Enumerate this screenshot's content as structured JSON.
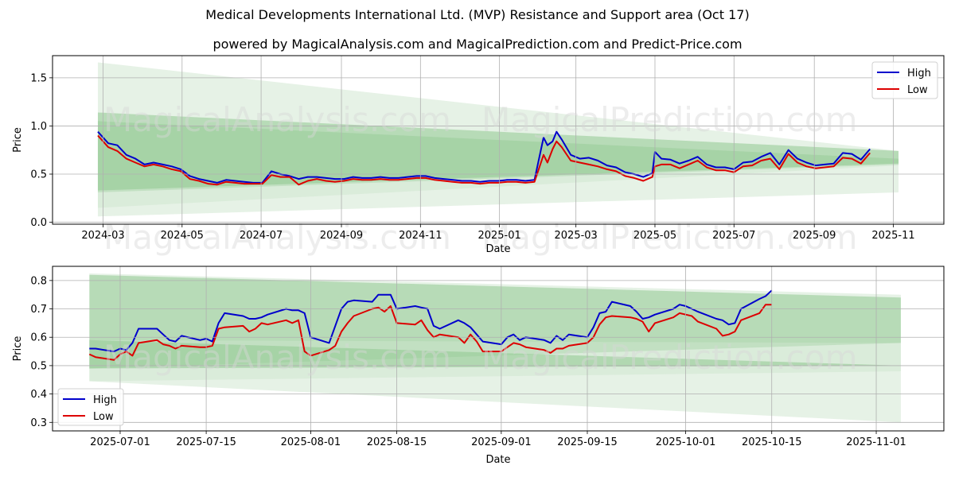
{
  "title": "Medical Developments International Ltd. (MVP) Resistance and Support area (Oct 17)",
  "subtitle": "powered by MagicalAnalysis.com and MagicalPrediction.com and Predict-Price.com",
  "watermarks": [
    "MagicalAnalysis.com",
    "MagicalPrediction.com"
  ],
  "colors": {
    "high": "#0000cc",
    "low": "#dd0000",
    "band_dark": "#8fc98f",
    "band_light": "#cde6cd"
  },
  "chart_data": [
    {
      "type": "line",
      "title": "",
      "xlabel": "Date",
      "ylabel": "Price",
      "ylim": [
        -0.02,
        1.73
      ],
      "xlim": [
        "2024-01-22",
        "2025-12-10"
      ],
      "grid": true,
      "legend": {
        "placement": "top-right",
        "entries": [
          "High",
          "Low"
        ]
      },
      "yticks": [
        0.0,
        0.5,
        1.0,
        1.5
      ],
      "ytick_labels": [
        "0.0",
        "0.5",
        "1.0",
        "1.5"
      ],
      "xticks": [
        "2024-03-01",
        "2024-05-01",
        "2024-07-01",
        "2024-09-01",
        "2024-11-01",
        "2025-01-01",
        "2025-03-01",
        "2025-05-01",
        "2025-07-01",
        "2025-09-01",
        "2025-11-01"
      ],
      "xtick_labels": [
        "2024-03",
        "2024-05",
        "2024-07",
        "2024-09",
        "2024-11",
        "2025-01",
        "2025-03",
        "2025-05",
        "2025-07",
        "2025-09",
        "2025-11"
      ],
      "bands": [
        {
          "name": "resistance-outer",
          "shade": "light",
          "x": [
            "2024-02-26",
            "2025-11-05"
          ],
          "upper": [
            1.66,
            0.74
          ],
          "lower": [
            0.06,
            0.31
          ]
        },
        {
          "name": "resistance-inner",
          "shade": "dark",
          "x": [
            "2024-02-26",
            "2025-11-05"
          ],
          "upper": [
            1.14,
            0.74
          ],
          "lower": [
            0.31,
            0.6
          ]
        },
        {
          "name": "support-outer",
          "shade": "light",
          "x": [
            "2024-02-26",
            "2025-11-05"
          ],
          "upper": [
            1.05,
            0.66
          ],
          "lower": [
            0.15,
            0.59
          ]
        },
        {
          "name": "support-inner",
          "shade": "dark",
          "x": [
            "2024-02-26",
            "2025-11-05"
          ],
          "upper": [
            1.05,
            0.66
          ],
          "lower": [
            0.33,
            0.61
          ]
        }
      ],
      "x": [
        "2024-02-26",
        "2024-03-05",
        "2024-03-12",
        "2024-03-19",
        "2024-03-26",
        "2024-04-02",
        "2024-04-09",
        "2024-04-16",
        "2024-04-23",
        "2024-04-30",
        "2024-05-07",
        "2024-05-14",
        "2024-05-21",
        "2024-05-28",
        "2024-06-04",
        "2024-06-11",
        "2024-06-18",
        "2024-06-25",
        "2024-07-02",
        "2024-07-09",
        "2024-07-16",
        "2024-07-23",
        "2024-07-30",
        "2024-08-06",
        "2024-08-13",
        "2024-08-20",
        "2024-08-27",
        "2024-09-03",
        "2024-09-10",
        "2024-09-17",
        "2024-09-24",
        "2024-10-01",
        "2024-10-08",
        "2024-10-15",
        "2024-10-22",
        "2024-10-29",
        "2024-11-05",
        "2024-11-12",
        "2024-11-19",
        "2024-11-26",
        "2024-12-03",
        "2024-12-10",
        "2024-12-17",
        "2024-12-24",
        "2024-12-31",
        "2025-01-07",
        "2025-01-14",
        "2025-01-21",
        "2025-01-28",
        "2025-02-04",
        "2025-02-07",
        "2025-02-11",
        "2025-02-14",
        "2025-02-18",
        "2025-02-25",
        "2025-03-04",
        "2025-03-11",
        "2025-03-18",
        "2025-03-25",
        "2025-04-01",
        "2025-04-08",
        "2025-04-15",
        "2025-04-22",
        "2025-04-29",
        "2025-05-01",
        "2025-05-06",
        "2025-05-13",
        "2025-05-20",
        "2025-05-27",
        "2025-06-03",
        "2025-06-10",
        "2025-06-17",
        "2025-06-24",
        "2025-07-01",
        "2025-07-08",
        "2025-07-15",
        "2025-07-22",
        "2025-07-29",
        "2025-08-05",
        "2025-08-12",
        "2025-08-19",
        "2025-08-26",
        "2025-09-02",
        "2025-09-09",
        "2025-09-16",
        "2025-09-23",
        "2025-09-30",
        "2025-10-07",
        "2025-10-14"
      ],
      "series": [
        {
          "name": "High",
          "values": [
            0.94,
            0.82,
            0.8,
            0.7,
            0.66,
            0.6,
            0.62,
            0.6,
            0.58,
            0.55,
            0.48,
            0.45,
            0.43,
            0.41,
            0.44,
            0.43,
            0.42,
            0.41,
            0.41,
            0.53,
            0.5,
            0.48,
            0.45,
            0.47,
            0.47,
            0.46,
            0.45,
            0.45,
            0.47,
            0.46,
            0.46,
            0.47,
            0.46,
            0.46,
            0.47,
            0.48,
            0.48,
            0.46,
            0.45,
            0.44,
            0.43,
            0.43,
            0.42,
            0.43,
            0.43,
            0.44,
            0.44,
            0.43,
            0.44,
            0.88,
            0.8,
            0.84,
            0.94,
            0.86,
            0.7,
            0.66,
            0.67,
            0.64,
            0.59,
            0.57,
            0.52,
            0.5,
            0.47,
            0.51,
            0.73,
            0.66,
            0.65,
            0.61,
            0.64,
            0.68,
            0.6,
            0.57,
            0.57,
            0.55,
            0.62,
            0.63,
            0.68,
            0.72,
            0.6,
            0.75,
            0.66,
            0.62,
            0.59,
            0.6,
            0.61,
            0.72,
            0.71,
            0.65,
            0.76
          ]
        },
        {
          "name": "Low",
          "values": [
            0.9,
            0.78,
            0.74,
            0.66,
            0.62,
            0.58,
            0.6,
            0.58,
            0.55,
            0.53,
            0.45,
            0.43,
            0.4,
            0.39,
            0.42,
            0.41,
            0.4,
            0.4,
            0.4,
            0.49,
            0.47,
            0.47,
            0.39,
            0.43,
            0.45,
            0.43,
            0.42,
            0.43,
            0.45,
            0.44,
            0.44,
            0.45,
            0.44,
            0.44,
            0.45,
            0.46,
            0.46,
            0.44,
            0.43,
            0.42,
            0.41,
            0.41,
            0.4,
            0.41,
            0.41,
            0.42,
            0.42,
            0.41,
            0.42,
            0.7,
            0.62,
            0.76,
            0.84,
            0.78,
            0.64,
            0.62,
            0.6,
            0.58,
            0.55,
            0.53,
            0.48,
            0.46,
            0.43,
            0.47,
            0.58,
            0.6,
            0.6,
            0.56,
            0.6,
            0.64,
            0.57,
            0.54,
            0.54,
            0.52,
            0.58,
            0.59,
            0.64,
            0.66,
            0.55,
            0.71,
            0.62,
            0.58,
            0.56,
            0.57,
            0.58,
            0.67,
            0.66,
            0.61,
            0.72
          ]
        }
      ]
    },
    {
      "type": "line",
      "title": "",
      "xlabel": "Date",
      "ylabel": "Price",
      "ylim": [
        0.27,
        0.85
      ],
      "xlim": [
        "2025-06-20",
        "2025-11-12"
      ],
      "grid": true,
      "legend": {
        "placement": "bottom-left",
        "entries": [
          "High",
          "Low"
        ]
      },
      "yticks": [
        0.3,
        0.4,
        0.5,
        0.6,
        0.7,
        0.8
      ],
      "ytick_labels": [
        "0.3",
        "0.4",
        "0.5",
        "0.6",
        "0.7",
        "0.8"
      ],
      "xticks": [
        "2025-07-01",
        "2025-07-15",
        "2025-08-01",
        "2025-08-15",
        "2025-09-01",
        "2025-09-15",
        "2025-10-01",
        "2025-10-15",
        "2025-11-01"
      ],
      "xtick_labels": [
        "2025-07-01",
        "2025-07-15",
        "2025-08-01",
        "2025-08-15",
        "2025-09-01",
        "2025-09-15",
        "2025-10-01",
        "2025-10-15",
        "2025-11-01"
      ],
      "bands": [
        {
          "name": "resistance-outer",
          "shade": "light",
          "x": [
            "2025-06-26",
            "2025-11-05"
          ],
          "upper": [
            0.825,
            0.75
          ],
          "lower": [
            0.445,
            0.3
          ]
        },
        {
          "name": "resistance-inner",
          "shade": "dark",
          "x": [
            "2025-06-26",
            "2025-11-05"
          ],
          "upper": [
            0.82,
            0.74
          ],
          "lower": [
            0.49,
            0.58
          ]
        },
        {
          "name": "support-outer",
          "shade": "light",
          "x": [
            "2025-06-26",
            "2025-11-05"
          ],
          "upper": [
            0.59,
            0.58
          ],
          "lower": [
            0.445,
            0.48
          ]
        },
        {
          "name": "support-inner",
          "shade": "dark",
          "x": [
            "2025-06-26",
            "2025-11-05"
          ],
          "upper": [
            0.59,
            0.5
          ],
          "lower": [
            0.49,
            0.5
          ]
        }
      ],
      "x": [
        "2025-06-26",
        "2025-06-27",
        "2025-06-30",
        "2025-07-01",
        "2025-07-02",
        "2025-07-03",
        "2025-07-04",
        "2025-07-07",
        "2025-07-08",
        "2025-07-09",
        "2025-07-10",
        "2025-07-11",
        "2025-07-14",
        "2025-07-15",
        "2025-07-16",
        "2025-07-17",
        "2025-07-18",
        "2025-07-21",
        "2025-07-22",
        "2025-07-23",
        "2025-07-24",
        "2025-07-25",
        "2025-07-28",
        "2025-07-29",
        "2025-07-30",
        "2025-07-31",
        "2025-08-01",
        "2025-08-04",
        "2025-08-05",
        "2025-08-06",
        "2025-08-07",
        "2025-08-08",
        "2025-08-11",
        "2025-08-12",
        "2025-08-13",
        "2025-08-14",
        "2025-08-15",
        "2025-08-18",
        "2025-08-19",
        "2025-08-20",
        "2025-08-21",
        "2025-08-22",
        "2025-08-25",
        "2025-08-26",
        "2025-08-27",
        "2025-08-28",
        "2025-08-29",
        "2025-09-01",
        "2025-09-02",
        "2025-09-03",
        "2025-09-04",
        "2025-09-05",
        "2025-09-08",
        "2025-09-09",
        "2025-09-10",
        "2025-09-11",
        "2025-09-12",
        "2025-09-15",
        "2025-09-16",
        "2025-09-17",
        "2025-09-18",
        "2025-09-19",
        "2025-09-22",
        "2025-09-23",
        "2025-09-24",
        "2025-09-25",
        "2025-09-26",
        "2025-09-29",
        "2025-09-30",
        "2025-10-01",
        "2025-10-02",
        "2025-10-03",
        "2025-10-06",
        "2025-10-07",
        "2025-10-08",
        "2025-10-09",
        "2025-10-10",
        "2025-10-13",
        "2025-10-14",
        "2025-10-15"
      ],
      "series": [
        {
          "name": "High",
          "values": [
            0.56,
            0.56,
            0.55,
            0.56,
            0.555,
            0.58,
            0.63,
            0.63,
            0.61,
            0.59,
            0.585,
            0.605,
            0.59,
            0.595,
            0.585,
            0.65,
            0.685,
            0.675,
            0.665,
            0.665,
            0.67,
            0.68,
            0.7,
            0.695,
            0.695,
            0.685,
            0.6,
            0.58,
            0.64,
            0.7,
            0.725,
            0.73,
            0.725,
            0.75,
            0.75,
            0.75,
            0.7,
            0.71,
            0.705,
            0.7,
            0.64,
            0.63,
            0.66,
            0.65,
            0.635,
            0.61,
            0.585,
            0.575,
            0.6,
            0.61,
            0.59,
            0.6,
            0.59,
            0.58,
            0.605,
            0.59,
            0.61,
            0.6,
            0.635,
            0.685,
            0.69,
            0.725,
            0.71,
            0.69,
            0.665,
            0.67,
            0.68,
            0.7,
            0.715,
            0.71,
            0.7,
            0.69,
            0.665,
            0.66,
            0.645,
            0.65,
            0.7,
            0.735,
            0.745,
            0.765
          ]
        },
        {
          "name": "Low",
          "values": [
            0.54,
            0.53,
            0.52,
            0.54,
            0.55,
            0.535,
            0.58,
            0.59,
            0.575,
            0.57,
            0.56,
            0.57,
            0.565,
            0.565,
            0.57,
            0.63,
            0.635,
            0.64,
            0.62,
            0.63,
            0.65,
            0.645,
            0.66,
            0.65,
            0.66,
            0.55,
            0.535,
            0.555,
            0.57,
            0.62,
            0.65,
            0.675,
            0.7,
            0.705,
            0.69,
            0.71,
            0.65,
            0.645,
            0.66,
            0.625,
            0.6,
            0.61,
            0.6,
            0.58,
            0.61,
            0.585,
            0.55,
            0.55,
            0.565,
            0.58,
            0.575,
            0.565,
            0.555,
            0.545,
            0.56,
            0.56,
            0.57,
            0.58,
            0.6,
            0.645,
            0.67,
            0.675,
            0.67,
            0.665,
            0.655,
            0.62,
            0.65,
            0.67,
            0.685,
            0.68,
            0.675,
            0.655,
            0.63,
            0.605,
            0.61,
            0.62,
            0.66,
            0.685,
            0.715,
            0.715
          ]
        }
      ]
    }
  ]
}
